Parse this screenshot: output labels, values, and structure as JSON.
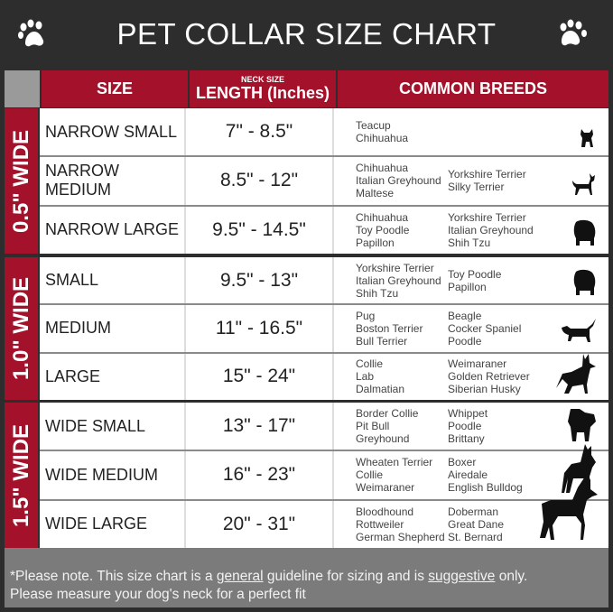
{
  "title": "PET COLLAR SIZE CHART",
  "icons": {
    "left": "paw-print-icon",
    "right": "paw-print-icon"
  },
  "colors": {
    "header_red": "#a4112b",
    "title_bg": "#2d2d2d",
    "footer_bg": "#7b7b7b"
  },
  "headers": {
    "size": "SIZE",
    "neck_small": "NECK SIZE",
    "length": "LENGTH (Inches)",
    "breeds": "COMMON BREEDS"
  },
  "groups": [
    {
      "label": "0.5\" WIDE",
      "rows": [
        {
          "size": "NARROW SMALL",
          "length": "7\" - 8.5\"",
          "breeds_a": [
            "Teacup",
            "Chihuahua"
          ],
          "breeds_b": [],
          "dog": "yorkie-silhouette-icon"
        },
        {
          "size": "NARROW MEDIUM",
          "length": "8.5\" - 12\"",
          "breeds_a": [
            "Chihuahua",
            "Italian Greyhound",
            "Maltese"
          ],
          "breeds_b": [
            "Yorkshire Terrier",
            "Silky Terrier"
          ],
          "dog": "chihuahua-silhouette-icon"
        },
        {
          "size": "NARROW LARGE",
          "length": "9.5\" - 14.5\"",
          "breeds_a": [
            "Chihuahua",
            "Toy Poodle",
            "Papillon"
          ],
          "breeds_b": [
            "Yorkshire Terrier",
            "Italian Greyhound",
            "Shih Tzu"
          ],
          "dog": "pomeranian-silhouette-icon"
        }
      ]
    },
    {
      "label": "1.0\" WIDE",
      "rows": [
        {
          "size": "SMALL",
          "length": "9.5\" - 13\"",
          "breeds_a": [
            "Yorkshire Terrier",
            "Italian Greyhound",
            "Shih Tzu"
          ],
          "breeds_b": [
            "Toy Poodle",
            "Papillon"
          ],
          "dog": "pomeranian-silhouette-icon"
        },
        {
          "size": "MEDIUM",
          "length": "11\" - 16.5\"",
          "breeds_a": [
            "Pug",
            "Boston Terrier",
            "Bull Terrier"
          ],
          "breeds_b": [
            "Beagle",
            "Cocker Spaniel",
            "Poodle"
          ],
          "dog": "dachshund-silhouette-icon"
        },
        {
          "size": "LARGE",
          "length": "15\" - 24\"",
          "breeds_a": [
            "Collie",
            "Lab",
            "Dalmatian"
          ],
          "breeds_b": [
            "Weimaraner",
            "Golden Retriever",
            "Siberian Husky"
          ],
          "dog": "shepherd-silhouette-icon"
        }
      ]
    },
    {
      "label": "1.5\" WIDE",
      "rows": [
        {
          "size": "WIDE SMALL",
          "length": "13\" - 17\"",
          "breeds_a": [
            "Border Collie",
            "Pit Bull",
            "Greyhound"
          ],
          "breeds_b": [
            "Whippet",
            "Poodle",
            "Brittany"
          ],
          "dog": "bulldog-silhouette-icon"
        },
        {
          "size": "WIDE MEDIUM",
          "length": "16\" - 23\"",
          "breeds_a": [
            "Wheaten Terrier",
            "Collie",
            "Weimaraner"
          ],
          "breeds_b": [
            "Boxer",
            "Airedale",
            "English Bulldog"
          ],
          "dog": "pitbull-silhouette-icon"
        },
        {
          "size": "WIDE LARGE",
          "length": "20\" - 31\"",
          "breeds_a": [
            "Bloodhound",
            "Rottweiler",
            "German Shepherd"
          ],
          "breeds_b": [
            "Doberman",
            "Great Dane",
            "St. Bernard"
          ],
          "dog": "doberman-silhouette-icon"
        }
      ]
    }
  ],
  "footer": {
    "p1": "*Please note. This size chart is a ",
    "u1": "general",
    "p2": " guideline for sizing and is ",
    "u2": "suggestive",
    "p3": " only.",
    "line2": "Please measure your dog's neck for a perfect fit"
  }
}
